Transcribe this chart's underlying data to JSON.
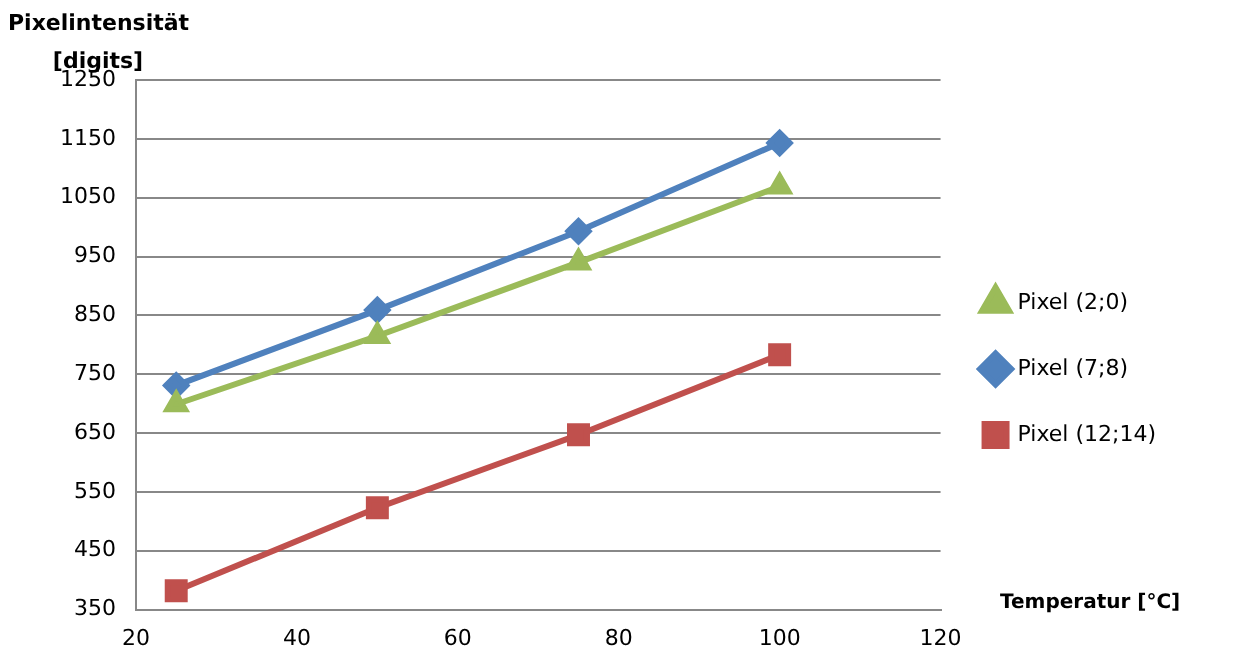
{
  "chart_data": {
    "type": "line",
    "xlabel": "Temperatur [°C]",
    "ylabel": "Pixelintensität [digits]",
    "xlim": [
      20,
      120
    ],
    "xticks": [
      20,
      40,
      60,
      80,
      100,
      120
    ],
    "ylim": [
      350,
      1250
    ],
    "yticks": [
      350,
      450,
      550,
      650,
      750,
      850,
      950,
      1050,
      1150,
      1250
    ],
    "grid": "y",
    "legend": "right",
    "line_style": "solid",
    "x": [
      25,
      50,
      75,
      100
    ],
    "series": [
      {
        "name": "Pixel (2;0)",
        "color": "#9bbb59",
        "marker": "triangle",
        "values": [
          699,
          815,
          940,
          1069
        ]
      },
      {
        "name": "Pixel (7;8)",
        "color": "#4f81bd",
        "marker": "diamond",
        "values": [
          731,
          859,
          993,
          1143
        ]
      },
      {
        "name": "Pixel (12;14)",
        "color": "#c0504d",
        "marker": "square",
        "values": [
          382,
          523,
          647,
          783
        ]
      }
    ]
  }
}
